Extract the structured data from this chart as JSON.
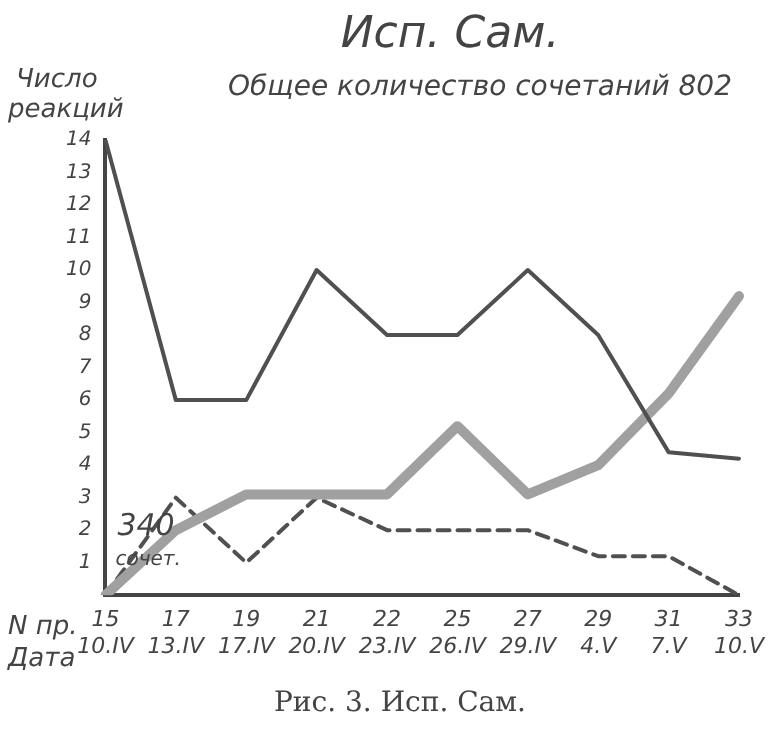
{
  "chart_data": {
    "type": "line",
    "title": "Исп. Сам.",
    "subtitle": "Общее количество сочетаний 802",
    "ylabel": "Число реакций",
    "categories": [
      "15\n10.IV",
      "17\n13.IV",
      "19\n17.IV",
      "21\n20.IV",
      "22\n23.IV",
      "25\n26.IV",
      "27\n29.IV",
      "29\n4.V",
      "31\n7.V",
      "33\n10.V"
    ],
    "series": [
      {
        "color": "#505050",
        "values": [
          14,
          6,
          6,
          10,
          8,
          8,
          10,
          8,
          4.4,
          4.2
        ]
      },
      {
        "color": "#a0a0a0",
        "values": [
          0,
          2,
          3.1,
          3.1,
          3.1,
          5.2,
          3.1,
          4,
          6.2,
          9.2
        ]
      },
      {
        "color": "#505050",
        "line_style": "dashed",
        "values": [
          0,
          3,
          1,
          3,
          2,
          2,
          2,
          1.2,
          1.2,
          0
        ]
      }
    ],
    "ylim": [
      0,
      14
    ],
    "yticks": [
      1,
      2,
      3,
      4,
      5,
      6,
      7,
      8,
      9,
      10,
      11,
      12,
      13,
      14
    ],
    "grid": false,
    "legend": false,
    "marker": "none",
    "annotations": [
      "340 сочет.",
      "N пр.",
      "Дата",
      "Рис. 3. Исп. Сам."
    ]
  }
}
